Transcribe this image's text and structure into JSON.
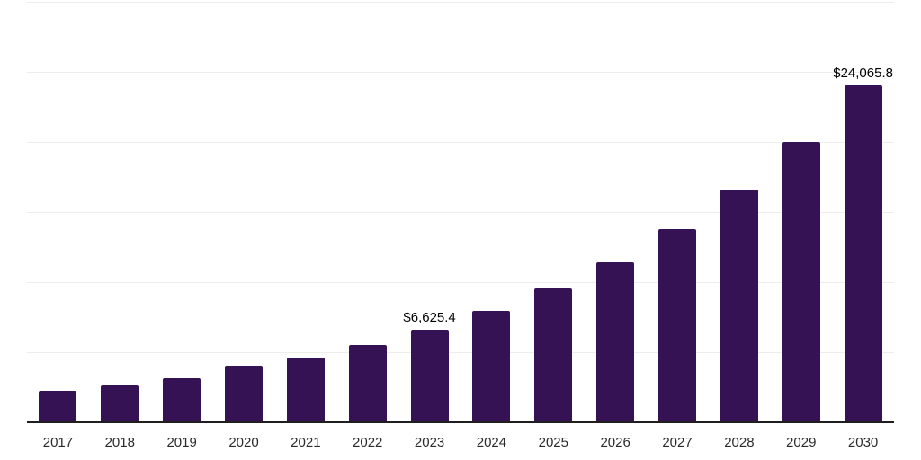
{
  "chart_data": {
    "type": "bar",
    "title": "",
    "xlabel": "",
    "ylabel": "",
    "categories": [
      "2017",
      "2018",
      "2019",
      "2020",
      "2021",
      "2022",
      "2023",
      "2024",
      "2025",
      "2026",
      "2027",
      "2028",
      "2029",
      "2030"
    ],
    "values": [
      2240,
      2610,
      3160,
      4020,
      4600,
      5490,
      6625.4,
      7950,
      9560,
      11400,
      13800,
      16600,
      19990,
      24065.8
    ],
    "data_labels": [
      null,
      null,
      null,
      null,
      null,
      null,
      "$6,625.4",
      null,
      null,
      null,
      null,
      null,
      null,
      "$24,065.8"
    ],
    "ylim": [
      0,
      30000
    ],
    "gridline_step": 5000,
    "grid": true,
    "legend_position": "none",
    "y_axis_ticks_visible": false,
    "colors": {
      "bar": "#341254",
      "axis_line": "#1f1f1f",
      "gridline": "#ededed",
      "tick_label": "#2b2b2b",
      "data_label": "#000000",
      "background": "#ffffff"
    }
  }
}
